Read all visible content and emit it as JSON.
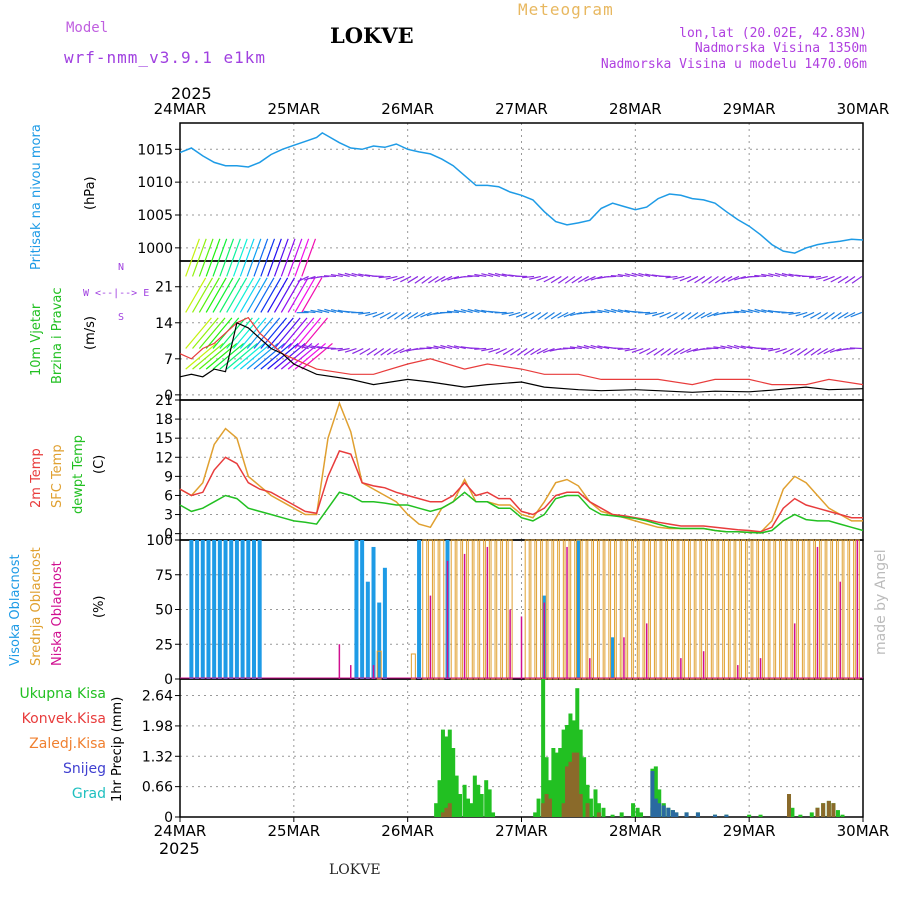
{
  "header": {
    "model_label": "Model",
    "model_name": "wrf-nmm_v3.9.1 e1km",
    "station": "LOKVE",
    "chart_kind": "Meteogram",
    "coords": "lon,lat (20.02E, 42.83N)",
    "altitude": "Nadmorska Visina 1350m",
    "model_altitude": "Nadmorska Visina u modelu 1470.06m",
    "footer_station": "LOKVE",
    "credit": "made by Angel"
  },
  "colors": {
    "pressure": "#1e9be6",
    "temp2m": "#e83c3c",
    "sfc": "#e0a030",
    "dew": "#22c022",
    "high_cloud": "#1e9be6",
    "mid_cloud": "#e0a030",
    "low_cloud": "#d01090",
    "precip_total": "#22c022",
    "precip_conv": "#e83c3c",
    "precip_frz": "#f08030",
    "snow": "#4040d0",
    "hail": "#20c0c0",
    "wind_purple": "#8a2be2",
    "wind_black": "#000000"
  },
  "time_axis": {
    "year_top": "2025",
    "year_bottom": "2025",
    "ticks": [
      "24MAR",
      "25MAR",
      "26MAR",
      "27MAR",
      "28MAR",
      "29MAR",
      "30MAR"
    ]
  },
  "chart_data": [
    {
      "id": "pressure",
      "type": "line",
      "label": "Pritisak na nivou mora",
      "unit": "(hPa)",
      "ylim": [
        998,
        1019
      ],
      "yticks": [
        1000,
        1005,
        1010,
        1015
      ],
      "x_days": [
        0,
        0.1,
        0.2,
        0.3,
        0.4,
        0.5,
        0.6,
        0.7,
        0.8,
        0.9,
        1.0,
        1.1,
        1.2,
        1.25,
        1.3,
        1.4,
        1.5,
        1.6,
        1.7,
        1.8,
        1.9,
        2.0,
        2.1,
        2.2,
        2.3,
        2.4,
        2.5,
        2.6,
        2.7,
        2.8,
        2.9,
        3.0,
        3.1,
        3.2,
        3.3,
        3.4,
        3.5,
        3.6,
        3.7,
        3.8,
        3.9,
        4.0,
        4.1,
        4.2,
        4.3,
        4.4,
        4.5,
        4.6,
        4.7,
        4.8,
        4.9,
        5.0,
        5.1,
        5.2,
        5.3,
        5.4,
        5.5,
        5.6,
        5.7,
        5.8,
        5.9,
        6.0
      ],
      "y": [
        1014.5,
        1015.2,
        1014.0,
        1013.0,
        1012.5,
        1012.5,
        1012.3,
        1013.0,
        1014.2,
        1015.0,
        1015.6,
        1016.2,
        1016.8,
        1017.5,
        1017.0,
        1016.0,
        1015.2,
        1015.0,
        1015.5,
        1015.3,
        1015.8,
        1015.0,
        1014.6,
        1014.3,
        1013.5,
        1012.5,
        1011.0,
        1009.5,
        1009.5,
        1009.3,
        1008.5,
        1008.0,
        1007.3,
        1005.5,
        1004.0,
        1003.5,
        1003.8,
        1004.2,
        1006.0,
        1006.8,
        1006.3,
        1005.8,
        1006.2,
        1007.5,
        1008.2,
        1008.0,
        1007.5,
        1007.3,
        1006.8,
        1005.5,
        1004.3,
        1003.3,
        1002.0,
        1000.5,
        999.5,
        999.2,
        1000.0,
        1000.5,
        1000.8,
        1001.0,
        1001.3,
        1001.2
      ]
    },
    {
      "id": "wind",
      "type": "line",
      "label_top": "10m Vjetar",
      "label_bottom": "Brzina i Pravac",
      "unit": "(m/s)",
      "compass": "W <--|--> E",
      "compass_n": "N",
      "compass_s": "S",
      "ylim": [
        -1,
        26
      ],
      "yticks": [
        0,
        7,
        14,
        21
      ],
      "x_days": [
        0,
        0.1,
        0.2,
        0.3,
        0.4,
        0.5,
        0.6,
        0.7,
        0.8,
        0.9,
        1.0,
        1.2,
        1.5,
        1.7,
        2.0,
        2.2,
        2.5,
        2.7,
        3.0,
        3.2,
        3.5,
        3.7,
        4.0,
        4.2,
        4.5,
        4.7,
        5.0,
        5.2,
        5.5,
        5.7,
        6.0
      ],
      "speed": [
        3.5,
        4,
        3.5,
        5,
        4.5,
        14,
        13,
        11,
        9,
        8,
        6,
        4,
        3,
        2,
        3,
        2.5,
        1.5,
        2,
        2.5,
        1.5,
        1,
        0.8,
        1,
        0.8,
        0.5,
        0.7,
        0.6,
        0.9,
        1.5,
        1,
        1.2
      ],
      "gust": [
        8,
        7,
        9,
        10,
        12,
        14,
        15,
        12,
        10,
        8,
        7,
        5,
        4,
        4,
        6,
        7,
        5,
        6,
        5,
        4,
        4,
        3,
        3,
        3,
        2,
        3,
        3,
        2,
        2,
        3,
        2
      ]
    },
    {
      "id": "temperature",
      "type": "line",
      "label_a": "2m Temp",
      "label_b": "SFC Temp",
      "label_c": "dewpt Temp",
      "unit": "(C)",
      "ylim": [
        -1,
        21
      ],
      "yticks": [
        0,
        3,
        6,
        9,
        12,
        15,
        18,
        21
      ],
      "x_days": [
        0,
        0.1,
        0.2,
        0.3,
        0.4,
        0.5,
        0.6,
        0.7,
        0.8,
        0.9,
        1.0,
        1.1,
        1.2,
        1.3,
        1.4,
        1.5,
        1.6,
        1.7,
        1.8,
        1.9,
        2.0,
        2.1,
        2.2,
        2.3,
        2.4,
        2.5,
        2.6,
        2.7,
        2.8,
        2.9,
        3.0,
        3.1,
        3.2,
        3.3,
        3.4,
        3.5,
        3.6,
        3.7,
        3.8,
        3.9,
        4.0,
        4.1,
        4.2,
        4.3,
        4.4,
        4.5,
        4.6,
        4.7,
        4.8,
        4.9,
        5.0,
        5.1,
        5.2,
        5.3,
        5.4,
        5.5,
        5.6,
        5.7,
        5.8,
        5.9,
        6.0
      ],
      "t2m": [
        7,
        6,
        6.5,
        10,
        12,
        11,
        8,
        7,
        6.5,
        5.5,
        4.5,
        3.5,
        3.2,
        9,
        13,
        12.5,
        8,
        7.5,
        7.2,
        6.5,
        6,
        5.5,
        5,
        5,
        6,
        8,
        6,
        6.5,
        5.5,
        5.5,
        3.5,
        3,
        4,
        6,
        6.5,
        6.5,
        5,
        4,
        3,
        2.8,
        2.5,
        2.2,
        1.8,
        1.5,
        1.2,
        1.2,
        1.2,
        1.0,
        0.8,
        0.6,
        0.5,
        0.3,
        1,
        4,
        5.5,
        4.5,
        4,
        3.5,
        3,
        2.5,
        2.5
      ],
      "sfc": [
        7,
        6,
        8,
        14,
        16.5,
        15,
        9,
        7.5,
        6,
        5,
        4,
        3,
        3,
        15,
        20.5,
        16,
        8,
        7,
        6,
        5,
        3,
        1.5,
        1,
        4,
        5,
        8.5,
        5,
        5,
        4.5,
        4.5,
        3,
        2.5,
        5,
        8,
        8.5,
        7.5,
        5,
        3.5,
        3,
        2.5,
        2,
        1.5,
        1,
        0.8,
        0.8,
        0.8,
        0.8,
        0.5,
        0.3,
        0.3,
        0.2,
        0.2,
        2,
        7,
        9,
        8,
        6,
        4,
        3,
        2,
        2
      ],
      "dew": [
        4.5,
        3.5,
        4,
        5,
        6,
        5.5,
        4,
        3.5,
        3,
        2.5,
        2,
        1.8,
        1.5,
        4,
        6.5,
        6,
        5,
        5,
        4.8,
        4.5,
        4.5,
        4,
        3.5,
        4,
        5,
        6.5,
        5,
        5,
        4,
        4,
        2.5,
        2,
        3,
        5.5,
        6,
        6,
        4,
        3,
        2.8,
        2.6,
        2.4,
        2,
        1.5,
        1,
        0.8,
        0.8,
        0.8,
        0.5,
        0.3,
        0.3,
        0.2,
        0.1,
        0.5,
        2,
        3,
        2.2,
        2,
        2,
        1.5,
        1,
        0.5
      ]
    },
    {
      "id": "cloud",
      "type": "bar",
      "label_a": "Visoka Oblacnost",
      "label_b": "Srednja Oblacnost",
      "label_c": "Niska Oblacnost",
      "unit": "(%)",
      "ylim": [
        0,
        100
      ],
      "yticks": [
        0,
        25,
        50,
        75,
        100
      ],
      "high": [
        [
          0.1,
          100
        ],
        [
          0.15,
          100
        ],
        [
          0.2,
          100
        ],
        [
          0.25,
          100
        ],
        [
          0.3,
          100
        ],
        [
          0.35,
          100
        ],
        [
          0.4,
          100
        ],
        [
          0.45,
          100
        ],
        [
          0.5,
          100
        ],
        [
          0.55,
          100
        ],
        [
          0.6,
          100
        ],
        [
          0.65,
          100
        ],
        [
          0.7,
          100
        ],
        [
          1.55,
          100
        ],
        [
          1.6,
          100
        ],
        [
          1.65,
          70
        ],
        [
          1.7,
          95
        ],
        [
          1.75,
          55
        ],
        [
          1.8,
          80
        ],
        [
          2.1,
          100
        ],
        [
          2.35,
          100
        ],
        [
          3.2,
          60
        ],
        [
          3.5,
          100
        ],
        [
          3.8,
          30
        ]
      ],
      "mid": [
        [
          1.75,
          20
        ],
        [
          2.05,
          18
        ],
        [
          2.15,
          100
        ],
        [
          2.2,
          100
        ],
        [
          2.25,
          100
        ],
        [
          2.3,
          100
        ],
        [
          2.4,
          100
        ],
        [
          2.45,
          100
        ],
        [
          2.5,
          100
        ],
        [
          2.55,
          100
        ],
        [
          2.6,
          100
        ],
        [
          2.65,
          100
        ],
        [
          2.7,
          100
        ],
        [
          2.75,
          100
        ],
        [
          2.8,
          100
        ],
        [
          2.85,
          100
        ],
        [
          2.9,
          100
        ],
        [
          3.05,
          100
        ],
        [
          3.1,
          100
        ],
        [
          3.15,
          100
        ],
        [
          3.2,
          100
        ],
        [
          3.25,
          100
        ],
        [
          3.3,
          100
        ],
        [
          3.35,
          100
        ],
        [
          3.4,
          100
        ],
        [
          3.45,
          100
        ],
        [
          3.5,
          100
        ],
        [
          3.55,
          100
        ],
        [
          3.6,
          100
        ],
        [
          3.65,
          100
        ],
        [
          3.7,
          100
        ],
        [
          3.75,
          100
        ],
        [
          3.8,
          100
        ],
        [
          3.85,
          100
        ],
        [
          3.9,
          100
        ],
        [
          3.95,
          100
        ],
        [
          4.0,
          100
        ],
        [
          4.05,
          100
        ],
        [
          4.1,
          100
        ],
        [
          4.15,
          100
        ],
        [
          4.2,
          100
        ],
        [
          4.25,
          100
        ],
        [
          4.3,
          100
        ],
        [
          4.35,
          100
        ],
        [
          4.4,
          100
        ],
        [
          4.45,
          100
        ],
        [
          4.5,
          100
        ],
        [
          4.55,
          100
        ],
        [
          4.6,
          100
        ],
        [
          4.65,
          100
        ],
        [
          4.7,
          100
        ],
        [
          4.75,
          100
        ],
        [
          4.8,
          100
        ],
        [
          4.85,
          100
        ],
        [
          4.9,
          100
        ],
        [
          4.95,
          100
        ],
        [
          5.0,
          100
        ],
        [
          5.05,
          100
        ],
        [
          5.1,
          100
        ],
        [
          5.15,
          100
        ],
        [
          5.2,
          100
        ],
        [
          5.25,
          100
        ],
        [
          5.3,
          100
        ],
        [
          5.35,
          100
        ],
        [
          5.4,
          100
        ],
        [
          5.45,
          100
        ],
        [
          5.5,
          100
        ],
        [
          5.55,
          100
        ],
        [
          5.6,
          100
        ],
        [
          5.65,
          100
        ],
        [
          5.7,
          100
        ],
        [
          5.75,
          100
        ],
        [
          5.8,
          100
        ],
        [
          5.85,
          100
        ],
        [
          5.9,
          100
        ],
        [
          5.95,
          100
        ]
      ],
      "low": [
        [
          1.4,
          25
        ],
        [
          1.5,
          10
        ],
        [
          1.7,
          10
        ],
        [
          2.2,
          60
        ],
        [
          2.35,
          85
        ],
        [
          2.5,
          90
        ],
        [
          2.7,
          95
        ],
        [
          2.9,
          50
        ],
        [
          3.0,
          45
        ],
        [
          3.2,
          55
        ],
        [
          3.4,
          95
        ],
        [
          3.6,
          15
        ],
        [
          3.9,
          30
        ],
        [
          4.1,
          40
        ],
        [
          4.4,
          15
        ],
        [
          4.6,
          20
        ],
        [
          4.9,
          10
        ],
        [
          5.1,
          15
        ],
        [
          5.4,
          40
        ],
        [
          5.6,
          95
        ],
        [
          5.8,
          70
        ],
        [
          5.95,
          100
        ]
      ]
    },
    {
      "id": "precip",
      "type": "bar",
      "legend": [
        "Ukupna Kisa",
        "Konvek.Kisa",
        "Zaledj.Kisa",
        "Snijeg",
        "Grad"
      ],
      "ylabel": "1hr Precip (mm)",
      "ylim": [
        0,
        3.0
      ],
      "yticks": [
        0,
        0.66,
        1.32,
        1.98,
        2.64
      ],
      "total": [
        [
          2.25,
          0.3
        ],
        [
          2.28,
          0.8
        ],
        [
          2.31,
          1.9
        ],
        [
          2.34,
          1.75
        ],
        [
          2.37,
          1.9
        ],
        [
          2.4,
          1.5
        ],
        [
          2.43,
          0.9
        ],
        [
          2.46,
          0.5
        ],
        [
          2.5,
          0.7
        ],
        [
          2.53,
          0.4
        ],
        [
          2.56,
          0.3
        ],
        [
          2.59,
          0.9
        ],
        [
          2.62,
          0.7
        ],
        [
          2.65,
          0.5
        ],
        [
          2.69,
          0.8
        ],
        [
          2.72,
          0.6
        ],
        [
          2.75,
          0.1
        ],
        [
          3.12,
          0.1
        ],
        [
          3.15,
          0.4
        ],
        [
          3.19,
          3.0
        ],
        [
          3.22,
          1.3
        ],
        [
          3.25,
          0.8
        ],
        [
          3.28,
          1.5
        ],
        [
          3.31,
          1.4
        ],
        [
          3.34,
          1.5
        ],
        [
          3.37,
          1.9
        ],
        [
          3.4,
          2.0
        ],
        [
          3.43,
          2.25
        ],
        [
          3.46,
          2.1
        ],
        [
          3.49,
          2.8
        ],
        [
          3.52,
          1.9
        ],
        [
          3.55,
          1.3
        ],
        [
          3.58,
          0.7
        ],
        [
          3.61,
          0.4
        ],
        [
          3.65,
          0.6
        ],
        [
          3.68,
          0.3
        ],
        [
          3.72,
          0.2
        ],
        [
          3.8,
          0.05
        ],
        [
          3.88,
          0.1
        ],
        [
          3.98,
          0.3
        ],
        [
          4.02,
          0.2
        ],
        [
          4.05,
          0.1
        ],
        [
          4.15,
          1.05
        ],
        [
          4.18,
          1.1
        ],
        [
          4.21,
          0.6
        ],
        [
          4.25,
          0.3
        ],
        [
          4.29,
          0.2
        ],
        [
          4.33,
          0.15
        ],
        [
          4.36,
          0.1
        ],
        [
          4.45,
          0.1
        ],
        [
          4.55,
          0.1
        ],
        [
          4.7,
          0.05
        ],
        [
          4.8,
          0.05
        ],
        [
          5.0,
          0.05
        ],
        [
          5.1,
          0.05
        ],
        [
          5.35,
          0.5
        ],
        [
          5.38,
          0.2
        ],
        [
          5.45,
          0.05
        ],
        [
          5.55,
          0.1
        ],
        [
          5.6,
          0.2
        ],
        [
          5.65,
          0.3
        ],
        [
          5.7,
          0.35
        ],
        [
          5.74,
          0.3
        ],
        [
          5.78,
          0.15
        ],
        [
          5.82,
          0.05
        ]
      ],
      "conv": [
        [
          2.31,
          0.1
        ],
        [
          2.34,
          0.2
        ],
        [
          2.37,
          0.3
        ],
        [
          3.19,
          0.3
        ],
        [
          3.22,
          0.5
        ],
        [
          3.25,
          0.4
        ],
        [
          3.37,
          0.3
        ],
        [
          3.4,
          1.1
        ],
        [
          3.43,
          1.2
        ],
        [
          3.46,
          1.4
        ],
        [
          3.49,
          1.4
        ],
        [
          3.52,
          0.5
        ],
        [
          3.58,
          0.3
        ],
        [
          3.68,
          0.1
        ],
        [
          4.15,
          0.2
        ],
        [
          4.18,
          0.3
        ],
        [
          5.35,
          0.5
        ],
        [
          5.6,
          0.2
        ],
        [
          5.65,
          0.3
        ],
        [
          5.7,
          0.35
        ],
        [
          5.74,
          0.3
        ]
      ],
      "snow": [
        [
          4.15,
          1.0
        ],
        [
          4.18,
          0.4
        ],
        [
          4.21,
          0.3
        ],
        [
          4.25,
          0.25
        ],
        [
          4.29,
          0.2
        ],
        [
          4.33,
          0.15
        ],
        [
          4.36,
          0.1
        ],
        [
          4.45,
          0.1
        ],
        [
          4.55,
          0.1
        ],
        [
          4.7,
          0.05
        ],
        [
          4.8,
          0.05
        ]
      ]
    }
  ]
}
